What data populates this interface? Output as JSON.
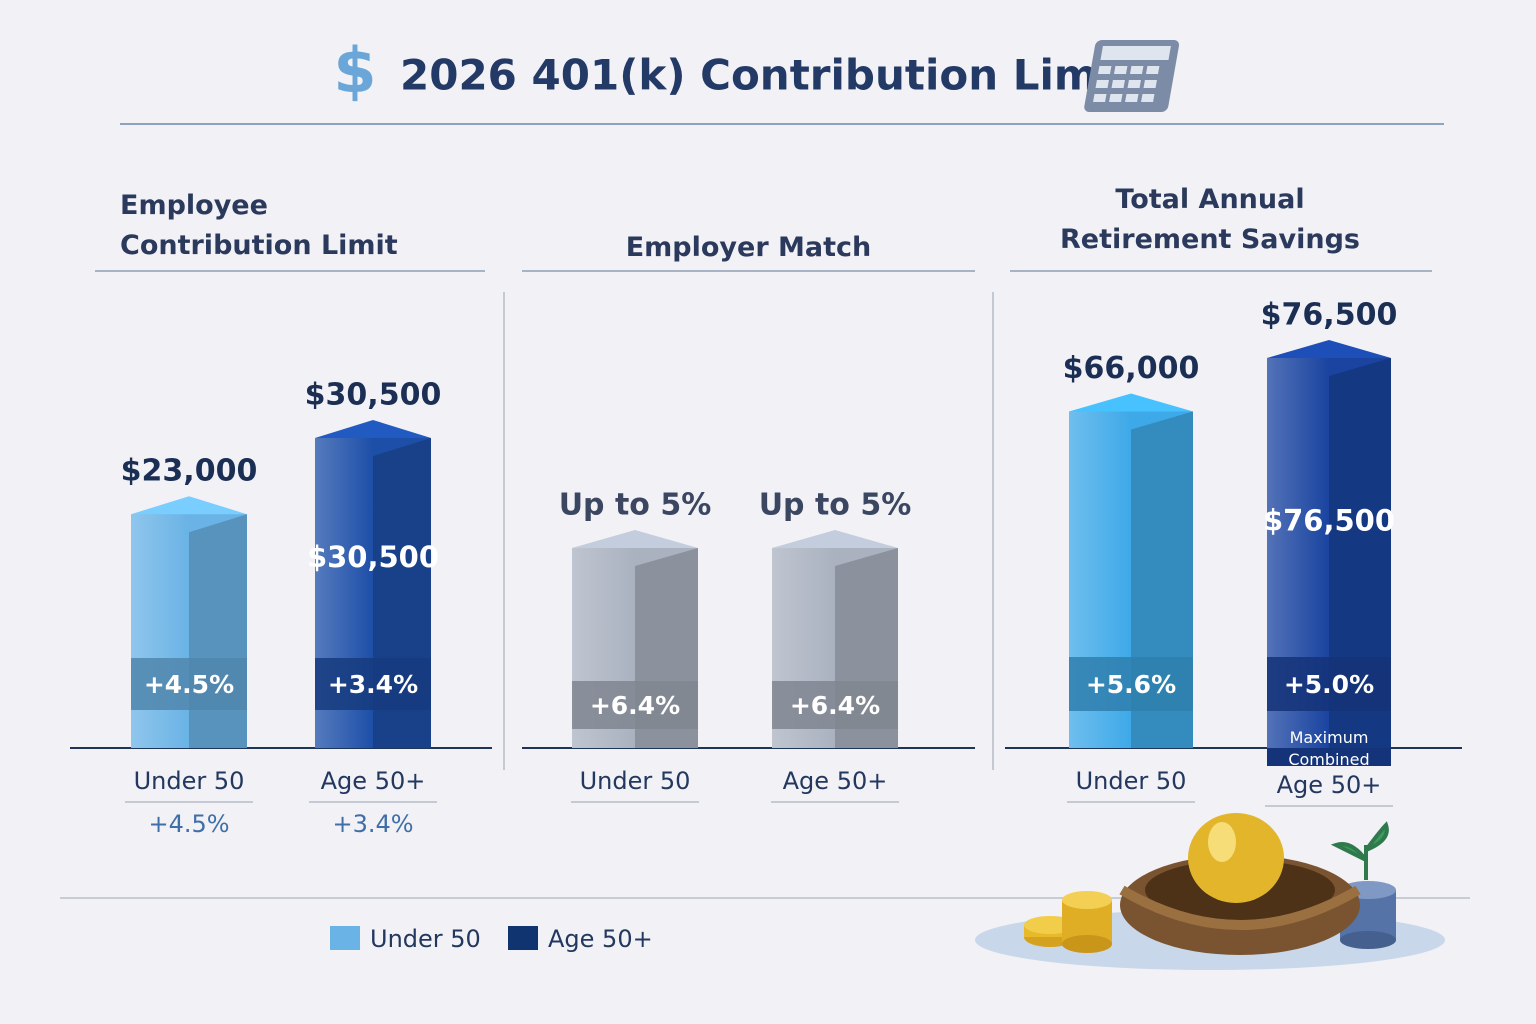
{
  "title": "2026 401(k) Contribution Limits",
  "legend": [
    {
      "name": "Under 50",
      "color": "#6ab3e6"
    },
    {
      "name": "Age 50+",
      "color": "#0f3470"
    }
  ],
  "chart_data": [
    {
      "type": "bar",
      "title": "Employee Contribution Limit",
      "categories": [
        "Under 50",
        "Age 50+"
      ],
      "values": [
        23000,
        30500
      ],
      "value_labels": [
        "$23,000",
        "$30,500"
      ],
      "inner_labels": [
        null,
        "$30,500"
      ],
      "badge_labels": [
        "+4.5%",
        "+3.4%"
      ],
      "sub_labels": [
        "+4.5%",
        "+3.4%"
      ],
      "colors": [
        "#6ab3e6",
        "#1d4fa8"
      ]
    },
    {
      "type": "bar",
      "title": "Employer Match",
      "categories": [
        "Under 50",
        "Age 50+"
      ],
      "values": [
        5,
        5
      ],
      "value_labels": [
        "Up to 5%",
        "Up to 5%"
      ],
      "badge_labels": [
        "+6.4%",
        "+6.4%"
      ],
      "colors": [
        "#aab2c0",
        "#aab2c0"
      ]
    },
    {
      "type": "bar",
      "title": "Total Annual Retirement Savings",
      "categories": [
        "Under 50",
        "Age 50+"
      ],
      "values": [
        66000,
        76500
      ],
      "value_labels": [
        "$66,000",
        "$76,500"
      ],
      "inner_labels": [
        null,
        "$76,500"
      ],
      "badge_labels": [
        "+5.6%",
        "+5.0%"
      ],
      "note": "Maximum Combined",
      "colors": [
        "#3ea9e8",
        "#1a44a0"
      ]
    }
  ]
}
